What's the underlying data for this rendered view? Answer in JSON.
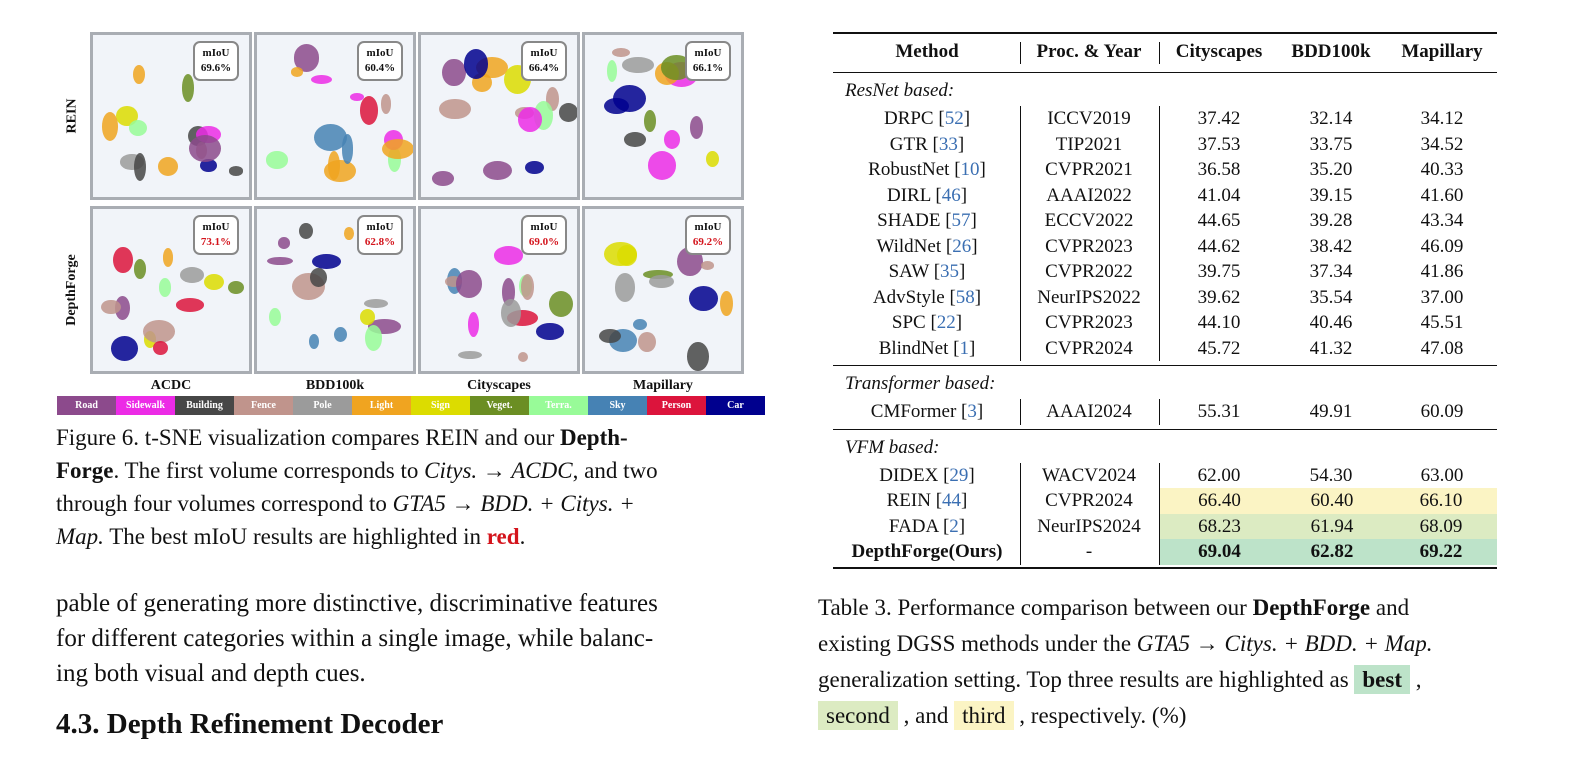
{
  "figure": {
    "rows": [
      "REIN",
      "DepthForge"
    ],
    "columns": [
      "ACDC",
      "BDD100k",
      "Cityscapes",
      "Mapillary"
    ],
    "miou_label": "mIoU",
    "miou": {
      "rein": [
        "69.6%",
        "60.4%",
        "66.4%",
        "66.1%"
      ],
      "depthforge": [
        "73.1%",
        "62.8%",
        "69.0%",
        "69.2%"
      ]
    },
    "legend": [
      {
        "label": "Road",
        "color": "#8c4a8c"
      },
      {
        "label": "Sidewalk",
        "color": "#ec2be6"
      },
      {
        "label": "Building",
        "color": "#474747"
      },
      {
        "label": "Fence",
        "color": "#c0948c"
      },
      {
        "label": "Pole",
        "color": "#9b9b9b"
      },
      {
        "label": "Light",
        "color": "#f0a420"
      },
      {
        "label": "Sign",
        "color": "#dcdc00"
      },
      {
        "label": "Veget.",
        "color": "#6b8e23"
      },
      {
        "label": "Terra.",
        "color": "#98fb98"
      },
      {
        "label": "Sky",
        "color": "#4682b4"
      },
      {
        "label": "Person",
        "color": "#dc143c"
      },
      {
        "label": "Car",
        "color": "#00008e"
      }
    ]
  },
  "caption_fig": {
    "line1_a": "Figure 6.  t-SNE visualization compares REIN and our ",
    "line1_b": "Depth-",
    "line2_a": "Forge",
    "line2_b": ". The first volume corresponds to ",
    "line2_c": "Citys. → ACDC",
    "line2_d": ", and two",
    "line3_a": "through four volumes correspond to ",
    "line3_b": "GTA5 → BDD. + Citys. +",
    "line4_a": "Map.",
    "line4_b": "  The best mIoU results are highlighted in ",
    "line4_c": "red",
    "line4_d": "."
  },
  "body": {
    "line1": "pable of generating more distinctive, discriminative features",
    "line2": "for different categories within a single image, while balanc-",
    "line3": "ing both visual and depth cues.",
    "heading": "4.3. Depth Refinement Decoder"
  },
  "table": {
    "headers": [
      "Method",
      "Proc. & Year",
      "Cityscapes",
      "BDD100k",
      "Mapillary"
    ],
    "sections": [
      {
        "title": "ResNet based:",
        "rows": [
          {
            "name": "DRPC",
            "ref": "52",
            "venue": "ICCV2019",
            "vals": [
              "37.42",
              "32.14",
              "34.12"
            ]
          },
          {
            "name": "GTR",
            "ref": "33",
            "venue": "TIP2021",
            "vals": [
              "37.53",
              "33.75",
              "34.52"
            ]
          },
          {
            "name": "RobustNet",
            "ref": "10",
            "venue": "CVPR2021",
            "vals": [
              "36.58",
              "35.20",
              "40.33"
            ]
          },
          {
            "name": "DIRL",
            "ref": "46",
            "venue": "AAAI2022",
            "vals": [
              "41.04",
              "39.15",
              "41.60"
            ]
          },
          {
            "name": "SHADE",
            "ref": "57",
            "venue": "ECCV2022",
            "vals": [
              "44.65",
              "39.28",
              "43.34"
            ]
          },
          {
            "name": "WildNet",
            "ref": "26",
            "venue": "CVPR2023",
            "vals": [
              "44.62",
              "38.42",
              "46.09"
            ]
          },
          {
            "name": "SAW",
            "ref": "35",
            "venue": "CVPR2022",
            "vals": [
              "39.75",
              "37.34",
              "41.86"
            ]
          },
          {
            "name": "AdvStyle",
            "ref": "58",
            "venue": "NeurIPS2022",
            "vals": [
              "39.62",
              "35.54",
              "37.00"
            ]
          },
          {
            "name": "SPC",
            "ref": "22",
            "venue": "CVPR2023",
            "vals": [
              "44.10",
              "40.46",
              "45.51"
            ]
          },
          {
            "name": "BlindNet",
            "ref": "1",
            "venue": "CVPR2024",
            "vals": [
              "45.72",
              "41.32",
              "47.08"
            ]
          }
        ]
      },
      {
        "title": "Transformer based:",
        "rows": [
          {
            "name": "CMFormer",
            "ref": "3",
            "venue": "AAAI2024",
            "vals": [
              "55.31",
              "49.91",
              "60.09"
            ]
          }
        ]
      },
      {
        "title": "VFM based:",
        "rows": [
          {
            "name": "DIDEX",
            "ref": "29",
            "venue": "WACV2024",
            "vals": [
              "62.00",
              "54.30",
              "63.00"
            ]
          },
          {
            "name": "REIN",
            "ref": "44",
            "venue": "CVPR2024",
            "vals": [
              "66.40",
              "60.40",
              "66.10"
            ],
            "rank": "third"
          },
          {
            "name": "FADA",
            "ref": "2",
            "venue": "NeurIPS2024",
            "vals": [
              "68.23",
              "61.94",
              "68.09"
            ],
            "rank": "second"
          },
          {
            "name": "DepthForge(Ours)",
            "ref": "",
            "venue": "-",
            "vals": [
              "69.04",
              "62.82",
              "69.22"
            ],
            "rank": "best"
          }
        ]
      }
    ]
  },
  "caption_table": {
    "line1_a": "Table 3.  Performance comparison between our ",
    "line1_b": "DepthForge",
    "line1_c": " and",
    "line2_a": "existing DGSS methods under the ",
    "line2_b": "GTA5 → Citys. + BDD. + Map.",
    "line3_a": "generalization setting. Top three results are highlighted as ",
    "line3_b": "best",
    "line3_c": " ,",
    "line4_a": "second",
    "line4_b": " , and ",
    "line4_c": "third",
    "line4_d": " , respectively. (%)"
  }
}
